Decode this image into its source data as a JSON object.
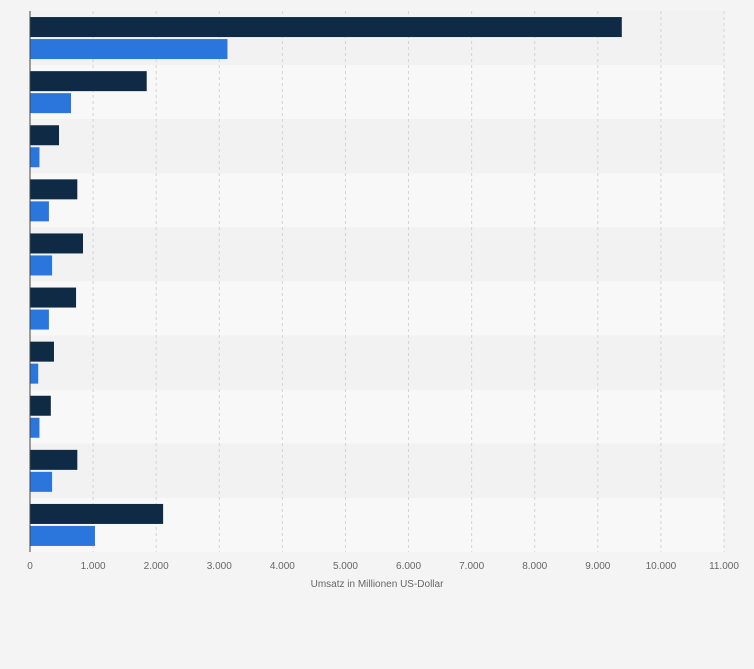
{
  "chart_data": {
    "type": "bar",
    "orientation": "horizontal",
    "title": "",
    "xlabel": "Umsatz in Millionen US-Dollar",
    "ylabel": "",
    "xlim": [
      0,
      11000
    ],
    "x_ticks": [
      0,
      1000,
      2000,
      3000,
      4000,
      5000,
      6000,
      7000,
      8000,
      9000,
      10000,
      11000
    ],
    "x_tick_labels": [
      "0",
      "1.000",
      "2.000",
      "3.000",
      "4.000",
      "5.000",
      "6.000",
      "7.000",
      "8.000",
      "9.000",
      "10.000",
      "11.000"
    ],
    "categories": [
      "",
      "",
      "",
      "",
      "",
      "",
      "",
      "",
      "",
      ""
    ],
    "grid": true,
    "legend": "none",
    "series": [
      {
        "values": [
          9380,
          1850,
          460,
          750,
          840,
          730,
          380,
          330,
          750,
          2110
        ],
        "color": "#0f2a44"
      },
      {
        "values": [
          3130,
          650,
          150,
          300,
          350,
          300,
          130,
          150,
          350,
          1030
        ],
        "color": "#2a76dd"
      }
    ]
  }
}
